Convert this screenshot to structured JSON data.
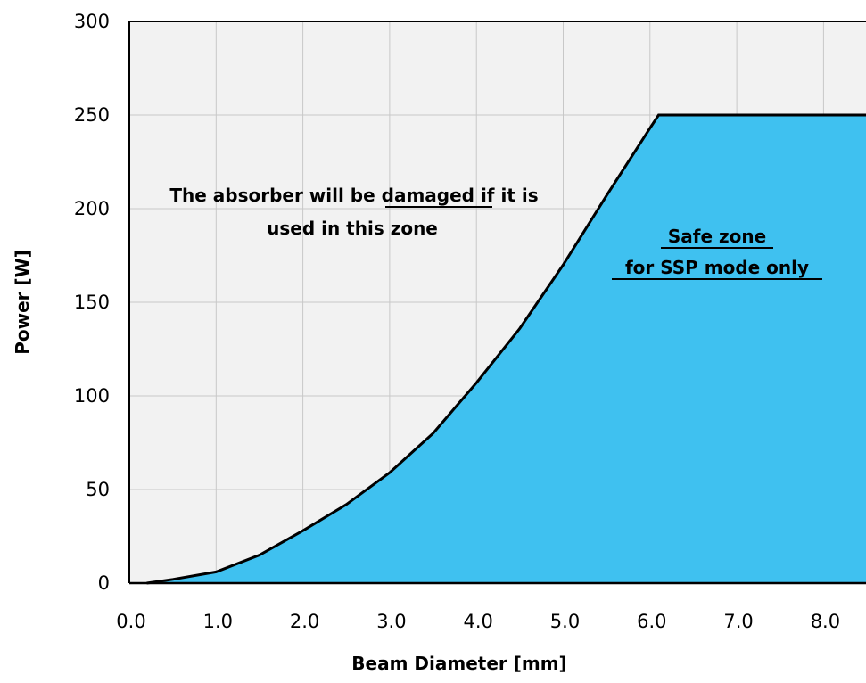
{
  "chart_data": {
    "type": "area",
    "xlabel": "Beam Diameter [mm]",
    "ylabel": "Power [W]",
    "xlim": [
      0,
      8.5
    ],
    "ylim": [
      0,
      300
    ],
    "x_ticks": [
      "0.0",
      "1.0",
      "2.0",
      "3.0",
      "4.0",
      "5.0",
      "6.0",
      "7.0",
      "8.0"
    ],
    "y_ticks": [
      "0",
      "50",
      "100",
      "150",
      "200",
      "250",
      "300"
    ],
    "grid": true,
    "colors": {
      "fill": "#3fc1f0",
      "line": "#000000",
      "plot_bg": "#f2f2f2",
      "grid": "#c8c8c8"
    },
    "series": [
      {
        "x": [
          0.2,
          0.5,
          1.0,
          1.5,
          2.0,
          2.5,
          3.0,
          3.5,
          4.0,
          4.5,
          5.0,
          5.5,
          6.0,
          6.1,
          6.2,
          7.0,
          8.0,
          8.5
        ],
        "values": [
          0,
          2,
          6,
          15,
          28,
          42,
          59,
          80,
          107,
          136,
          170,
          207,
          243,
          250,
          250,
          250,
          250,
          250
        ]
      }
    ],
    "annotations": [
      {
        "lines": [
          "The absorber will be damaged if it is",
          "used in this zone"
        ],
        "underlined": "damaged"
      },
      {
        "lines": [
          "Safe zone",
          "for SSP mode only"
        ],
        "underlined": "all"
      }
    ]
  }
}
